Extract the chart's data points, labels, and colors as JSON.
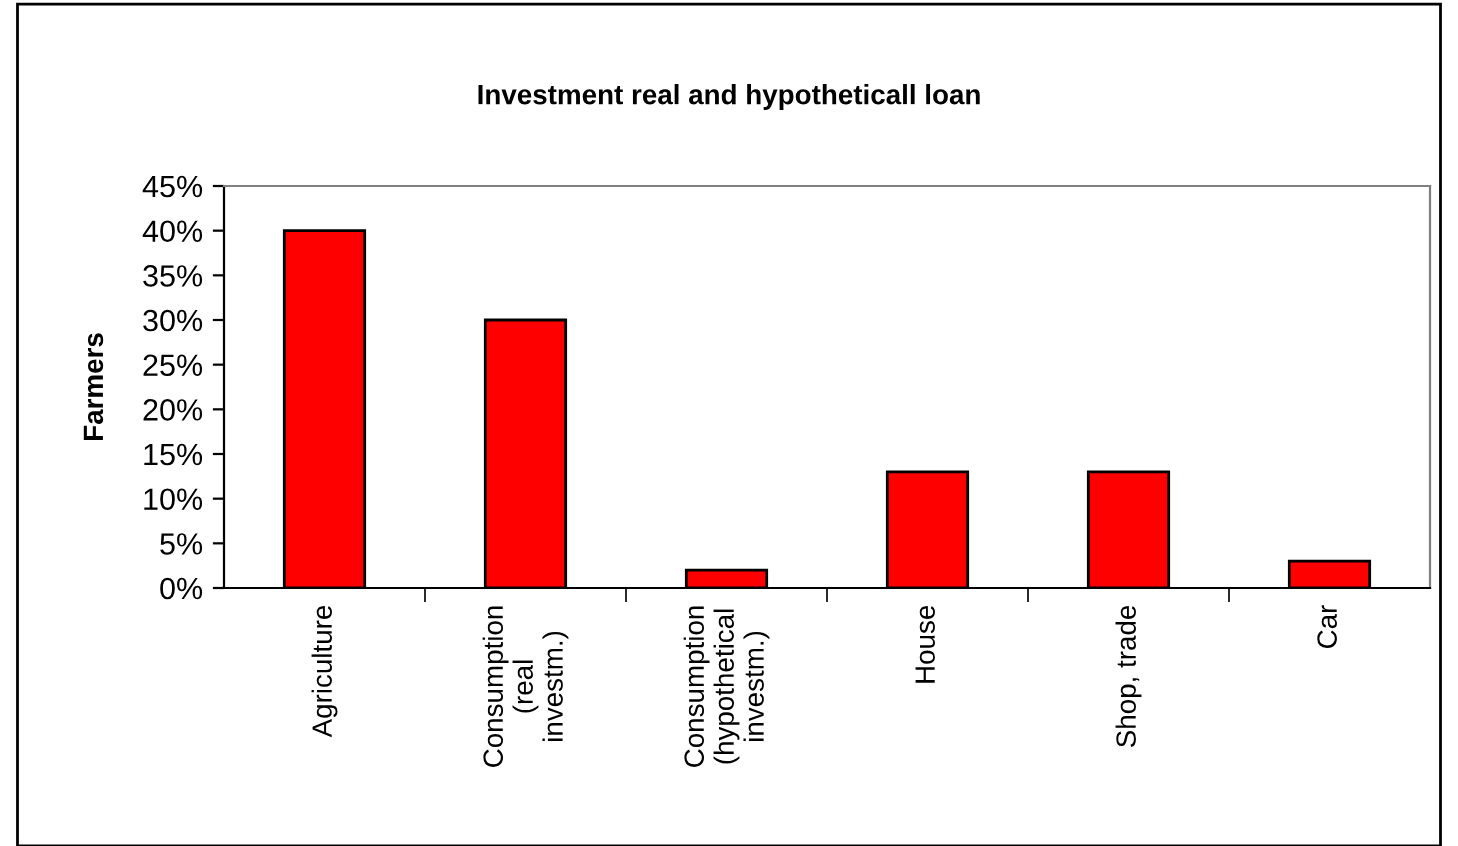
{
  "chart_data": {
    "type": "bar",
    "title": "Investment real and hypotheticall loan",
    "ylabel": "Farmers",
    "categories": [
      "Agriculture",
      "Consumption\n(real\ninvestm.)",
      "Consumption\n(hypothetical\ninvestm.)",
      "House",
      "Shop, trade",
      "Car"
    ],
    "values": [
      40,
      30,
      2,
      13,
      13,
      3
    ],
    "color": "#ff0000",
    "ylim": [
      0,
      45
    ],
    "yticks": [
      {
        "value": 0,
        "label": "0%"
      },
      {
        "value": 5,
        "label": "5%"
      },
      {
        "value": 10,
        "label": "10%"
      },
      {
        "value": 15,
        "label": "15%"
      },
      {
        "value": 20,
        "label": "20%"
      },
      {
        "value": 25,
        "label": "25%"
      },
      {
        "value": 30,
        "label": "30%"
      },
      {
        "value": 35,
        "label": "35%"
      },
      {
        "value": 40,
        "label": "40%"
      },
      {
        "value": 45,
        "label": "45%"
      }
    ],
    "grid": false,
    "legend": false
  }
}
